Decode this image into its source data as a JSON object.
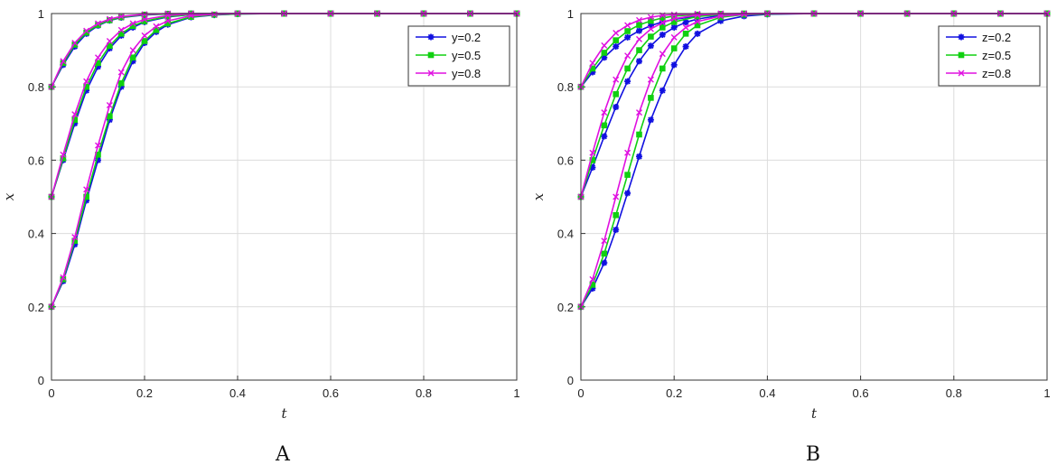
{
  "chart_data": [
    {
      "type": "line",
      "panel_label": "A",
      "xlabel": "t",
      "ylabel": "x",
      "xlim": [
        0,
        1
      ],
      "ylim": [
        0,
        1
      ],
      "xticks": [
        "0",
        "0.2",
        "0.4",
        "0.6",
        "0.8",
        "1"
      ],
      "yticks": [
        "0",
        "0.2",
        "0.4",
        "0.6",
        "0.8",
        "1"
      ],
      "grid": true,
      "legend_position": "top-right",
      "colors": [
        "#1010e0",
        "#10d010",
        "#e010e0"
      ],
      "series": [
        {
          "name": "y=0.2",
          "x": [
            0,
            0.025,
            0.05,
            0.075,
            0.1,
            0.125,
            0.15,
            0.175,
            0.2,
            0.225,
            0.25,
            0.3,
            0.35,
            0.4,
            0.5,
            0.6,
            0.7,
            0.8,
            0.9,
            1
          ],
          "values": [
            0.2,
            0.27,
            0.37,
            0.49,
            0.6,
            0.71,
            0.8,
            0.87,
            0.92,
            0.95,
            0.97,
            0.99,
            0.996,
            0.999,
            1,
            1,
            1,
            1,
            1,
            1
          ]
        },
        {
          "name": "y=0.2",
          "x": [
            0,
            0.025,
            0.05,
            0.075,
            0.1,
            0.125,
            0.15,
            0.175,
            0.2,
            0.25,
            0.3,
            0.4,
            0.5,
            0.6,
            0.7,
            0.8,
            0.9,
            1
          ],
          "values": [
            0.5,
            0.6,
            0.7,
            0.79,
            0.855,
            0.905,
            0.94,
            0.962,
            0.977,
            0.991,
            0.997,
            1,
            1,
            1,
            1,
            1,
            1,
            1
          ]
        },
        {
          "name": "y=0.2",
          "x": [
            0,
            0.025,
            0.05,
            0.075,
            0.1,
            0.125,
            0.15,
            0.2,
            0.25,
            0.3,
            0.4,
            0.5,
            0.6,
            0.7,
            0.8,
            0.9,
            1
          ],
          "values": [
            0.8,
            0.86,
            0.91,
            0.945,
            0.967,
            0.981,
            0.989,
            0.996,
            0.999,
            1,
            1,
            1,
            1,
            1,
            1,
            1,
            1
          ]
        },
        {
          "name": "y=0.5",
          "x": [
            0,
            0.025,
            0.05,
            0.075,
            0.1,
            0.125,
            0.15,
            0.175,
            0.2,
            0.225,
            0.25,
            0.3,
            0.35,
            0.4,
            0.5,
            0.6,
            0.7,
            0.8,
            0.9,
            1
          ],
          "values": [
            0.2,
            0.275,
            0.38,
            0.5,
            0.615,
            0.72,
            0.81,
            0.88,
            0.925,
            0.955,
            0.973,
            0.991,
            0.997,
            0.999,
            1,
            1,
            1,
            1,
            1,
            1
          ]
        },
        {
          "name": "y=0.5",
          "x": [
            0,
            0.025,
            0.05,
            0.075,
            0.1,
            0.125,
            0.15,
            0.175,
            0.2,
            0.25,
            0.3,
            0.4,
            0.5,
            0.6,
            0.7,
            0.8,
            0.9,
            1
          ],
          "values": [
            0.5,
            0.605,
            0.71,
            0.8,
            0.865,
            0.912,
            0.945,
            0.966,
            0.979,
            0.992,
            0.997,
            1,
            1,
            1,
            1,
            1,
            1,
            1
          ]
        },
        {
          "name": "y=0.5",
          "x": [
            0,
            0.025,
            0.05,
            0.075,
            0.1,
            0.125,
            0.15,
            0.2,
            0.25,
            0.3,
            0.4,
            0.5,
            0.6,
            0.7,
            0.8,
            0.9,
            1
          ],
          "values": [
            0.8,
            0.865,
            0.915,
            0.948,
            0.969,
            0.982,
            0.99,
            0.997,
            0.999,
            1,
            1,
            1,
            1,
            1,
            1,
            1,
            1
          ]
        },
        {
          "name": "y=0.8",
          "x": [
            0,
            0.025,
            0.05,
            0.075,
            0.1,
            0.125,
            0.15,
            0.175,
            0.2,
            0.225,
            0.25,
            0.3,
            0.35,
            0.4,
            0.5,
            0.6,
            0.7,
            0.8,
            0.9,
            1
          ],
          "values": [
            0.2,
            0.28,
            0.39,
            0.52,
            0.64,
            0.75,
            0.84,
            0.9,
            0.94,
            0.965,
            0.98,
            0.994,
            0.998,
            1,
            1,
            1,
            1,
            1,
            1,
            1
          ]
        },
        {
          "name": "y=0.8",
          "x": [
            0,
            0.025,
            0.05,
            0.075,
            0.1,
            0.125,
            0.15,
            0.175,
            0.2,
            0.25,
            0.3,
            0.4,
            0.5,
            0.6,
            0.7,
            0.8,
            0.9,
            1
          ],
          "values": [
            0.5,
            0.615,
            0.725,
            0.815,
            0.88,
            0.925,
            0.955,
            0.973,
            0.984,
            0.995,
            0.999,
            1,
            1,
            1,
            1,
            1,
            1,
            1
          ]
        },
        {
          "name": "y=0.8",
          "x": [
            0,
            0.025,
            0.05,
            0.075,
            0.1,
            0.125,
            0.15,
            0.2,
            0.25,
            0.3,
            0.4,
            0.5,
            0.6,
            0.7,
            0.8,
            0.9,
            1
          ],
          "values": [
            0.8,
            0.87,
            0.92,
            0.953,
            0.973,
            0.985,
            0.992,
            0.998,
            1,
            1,
            1,
            1,
            1,
            1,
            1,
            1,
            1
          ]
        }
      ]
    },
    {
      "type": "line",
      "panel_label": "B",
      "xlabel": "t",
      "ylabel": "x",
      "xlim": [
        0,
        1
      ],
      "ylim": [
        0,
        1
      ],
      "xticks": [
        "0",
        "0.2",
        "0.4",
        "0.6",
        "0.8",
        "1"
      ],
      "yticks": [
        "0",
        "0.2",
        "0.4",
        "0.6",
        "0.8",
        "1"
      ],
      "grid": true,
      "legend_position": "top-right",
      "colors": [
        "#1010e0",
        "#10d010",
        "#e010e0"
      ],
      "series": [
        {
          "name": "z=0.2",
          "x": [
            0,
            0.025,
            0.05,
            0.075,
            0.1,
            0.125,
            0.15,
            0.175,
            0.2,
            0.225,
            0.25,
            0.3,
            0.35,
            0.4,
            0.5,
            0.6,
            0.7,
            0.8,
            0.9,
            1
          ],
          "values": [
            0.2,
            0.25,
            0.32,
            0.41,
            0.51,
            0.61,
            0.71,
            0.79,
            0.86,
            0.91,
            0.945,
            0.98,
            0.993,
            0.998,
            1,
            1,
            1,
            1,
            1,
            1
          ]
        },
        {
          "name": "z=0.2",
          "x": [
            0,
            0.025,
            0.05,
            0.075,
            0.1,
            0.125,
            0.15,
            0.175,
            0.2,
            0.225,
            0.25,
            0.3,
            0.35,
            0.4,
            0.5,
            0.6,
            0.7,
            0.8,
            0.9,
            1
          ],
          "values": [
            0.5,
            0.58,
            0.665,
            0.745,
            0.815,
            0.87,
            0.912,
            0.942,
            0.962,
            0.976,
            0.985,
            0.995,
            0.998,
            1,
            1,
            1,
            1,
            1,
            1,
            1
          ]
        },
        {
          "name": "z=0.2",
          "x": [
            0,
            0.025,
            0.05,
            0.075,
            0.1,
            0.125,
            0.15,
            0.175,
            0.2,
            0.25,
            0.3,
            0.35,
            0.4,
            0.5,
            0.6,
            0.7,
            0.8,
            0.9,
            1
          ],
          "values": [
            0.8,
            0.84,
            0.88,
            0.91,
            0.935,
            0.953,
            0.967,
            0.977,
            0.984,
            0.993,
            0.997,
            0.999,
            1,
            1,
            1,
            1,
            1,
            1,
            1
          ]
        },
        {
          "name": "z=0.5",
          "x": [
            0,
            0.025,
            0.05,
            0.075,
            0.1,
            0.125,
            0.15,
            0.175,
            0.2,
            0.225,
            0.25,
            0.3,
            0.35,
            0.4,
            0.5,
            0.6,
            0.7,
            0.8,
            0.9,
            1
          ],
          "values": [
            0.2,
            0.26,
            0.345,
            0.45,
            0.56,
            0.67,
            0.77,
            0.85,
            0.905,
            0.945,
            0.968,
            0.99,
            0.997,
            0.999,
            1,
            1,
            1,
            1,
            1,
            1
          ]
        },
        {
          "name": "z=0.5",
          "x": [
            0,
            0.025,
            0.05,
            0.075,
            0.1,
            0.125,
            0.15,
            0.175,
            0.2,
            0.25,
            0.3,
            0.35,
            0.4,
            0.5,
            0.6,
            0.7,
            0.8,
            0.9,
            1
          ],
          "values": [
            0.5,
            0.6,
            0.695,
            0.78,
            0.85,
            0.9,
            0.937,
            0.962,
            0.977,
            0.992,
            0.997,
            0.999,
            1,
            1,
            1,
            1,
            1,
            1,
            1
          ]
        },
        {
          "name": "z=0.5",
          "x": [
            0,
            0.025,
            0.05,
            0.075,
            0.1,
            0.125,
            0.15,
            0.175,
            0.2,
            0.25,
            0.3,
            0.35,
            0.4,
            0.5,
            0.6,
            0.7,
            0.8,
            0.9,
            1
          ],
          "values": [
            0.8,
            0.85,
            0.893,
            0.927,
            0.952,
            0.969,
            0.98,
            0.988,
            0.993,
            0.997,
            0.999,
            1,
            1,
            1,
            1,
            1,
            1,
            1,
            1
          ]
        },
        {
          "name": "z=0.8",
          "x": [
            0,
            0.025,
            0.05,
            0.075,
            0.1,
            0.125,
            0.15,
            0.175,
            0.2,
            0.225,
            0.25,
            0.3,
            0.35,
            0.4,
            0.5,
            0.6,
            0.7,
            0.8,
            0.9,
            1
          ],
          "values": [
            0.2,
            0.275,
            0.38,
            0.5,
            0.62,
            0.73,
            0.82,
            0.89,
            0.935,
            0.962,
            0.978,
            0.993,
            0.998,
            1,
            1,
            1,
            1,
            1,
            1,
            1
          ]
        },
        {
          "name": "z=0.8",
          "x": [
            0,
            0.025,
            0.05,
            0.075,
            0.1,
            0.125,
            0.15,
            0.175,
            0.2,
            0.25,
            0.3,
            0.35,
            0.4,
            0.5,
            0.6,
            0.7,
            0.8,
            0.9,
            1
          ],
          "values": [
            0.5,
            0.62,
            0.73,
            0.82,
            0.885,
            0.93,
            0.958,
            0.975,
            0.986,
            0.996,
            0.999,
            1,
            1,
            1,
            1,
            1,
            1,
            1,
            1
          ]
        },
        {
          "name": "z=0.8",
          "x": [
            0,
            0.025,
            0.05,
            0.075,
            0.1,
            0.125,
            0.15,
            0.175,
            0.2,
            0.25,
            0.3,
            0.4,
            0.5,
            0.6,
            0.7,
            0.8,
            0.9,
            1
          ],
          "values": [
            0.8,
            0.865,
            0.913,
            0.947,
            0.968,
            0.982,
            0.99,
            0.995,
            0.997,
            0.999,
            1,
            1,
            1,
            1,
            1,
            1,
            1,
            1
          ]
        }
      ]
    }
  ]
}
